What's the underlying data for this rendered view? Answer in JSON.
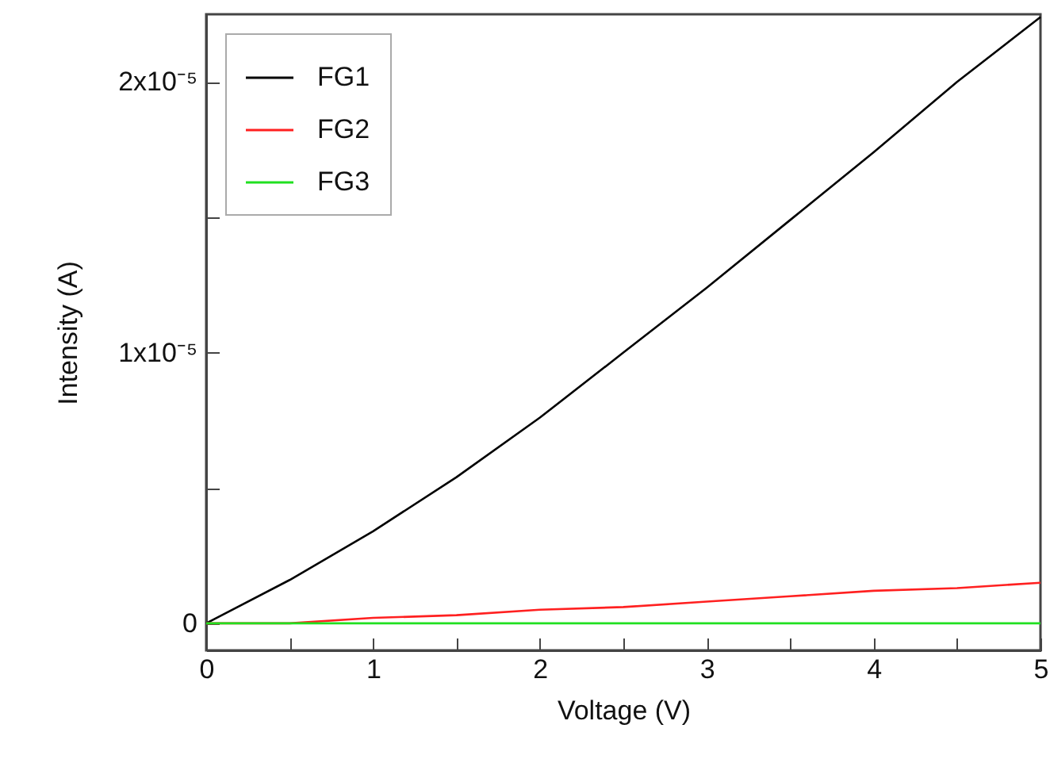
{
  "chart_data": {
    "type": "line",
    "xlabel": "Voltage (V)",
    "ylabel": "Intensity (A)",
    "x": [
      0,
      0.5,
      1,
      1.5,
      2,
      2.5,
      3,
      3.5,
      4,
      4.5,
      5
    ],
    "series": [
      {
        "name": "FG1",
        "color": "#000000",
        "values": [
          0,
          1.6e-06,
          3.4e-06,
          5.4e-06,
          7.6e-06,
          1e-05,
          1.24e-05,
          1.49e-05,
          1.74e-05,
          2e-05,
          2.24e-05
        ]
      },
      {
        "name": "FG2",
        "color": "#ff2020",
        "values": [
          0,
          0,
          2e-07,
          3e-07,
          5e-07,
          6e-07,
          8e-07,
          1e-06,
          1.2e-06,
          1.3e-06,
          1.5e-06
        ]
      },
      {
        "name": "FG3",
        "color": "#20e020",
        "values": [
          0,
          0,
          0,
          0,
          0,
          0,
          0,
          0,
          0,
          0,
          0
        ]
      }
    ],
    "xlim": [
      0,
      5
    ],
    "xticks": [
      0,
      {
        "value": 0.5,
        "label": null
      },
      1,
      {
        "value": 1.5,
        "label": null
      },
      2,
      {
        "value": 2.5,
        "label": null
      },
      3,
      {
        "value": 3.5,
        "label": null
      },
      4,
      {
        "value": 4.5,
        "label": null
      },
      5
    ],
    "ylim": [
      -1e-06,
      2.25e-05
    ],
    "yticks": [
      {
        "value": 0,
        "label": "0"
      },
      {
        "value": 5e-06,
        "label": null
      },
      {
        "value": 1e-05,
        "label": "1x10⁻⁵"
      },
      {
        "value": 1.5e-05,
        "label": null
      },
      {
        "value": 2e-05,
        "label": "2x10⁻⁵"
      }
    ],
    "legend": "top left",
    "grid": false,
    "marker": "none",
    "line_style": "solid"
  }
}
